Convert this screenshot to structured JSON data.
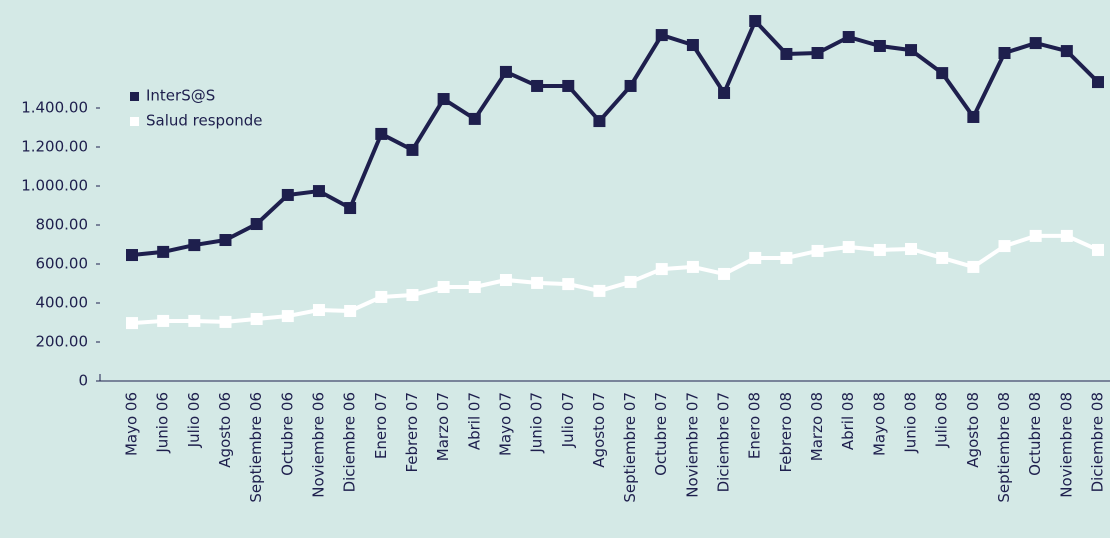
{
  "chart_data": {
    "type": "line",
    "categories": [
      "Mayo 06",
      "Junio 06",
      "Julio 06",
      "Agosto 06",
      "Septiembre 06",
      "Octubre 06",
      "Noviembre 06",
      "Diciembre 06",
      "Enero 07",
      "Febrero 07",
      "Marzo 07",
      "Abril 07",
      "Mayo 07",
      "Junio 07",
      "Julio 07",
      "Agosto 07",
      "Septiembre 07",
      "Octubre 07",
      "Noviembre 07",
      "Diciembre 07",
      "Enero 08",
      "Febrero 08",
      "Marzo 08",
      "Abril 08",
      "Mayo 08",
      "Junio 08",
      "Julio 08",
      "Agosto 08",
      "Septiembre 08",
      "Octubre 08",
      "Noviembre 08",
      "Diciembre 08"
    ],
    "series": [
      {
        "name": "InterS@S",
        "color": "#1e1f4d",
        "values": [
          646,
          662,
          697,
          723,
          805,
          954,
          974,
          887,
          1267,
          1185,
          1446,
          1344,
          1585,
          1513,
          1513,
          1333,
          1513,
          1774,
          1723,
          1477,
          1846,
          1677,
          1682,
          1764,
          1718,
          1697,
          1579,
          1354,
          1682,
          1733,
          1692,
          1533
        ]
      },
      {
        "name": "Salud responde",
        "color": "#ffffff",
        "values": [
          297,
          308,
          308,
          303,
          318,
          333,
          364,
          359,
          431,
          441,
          482,
          482,
          518,
          503,
          497,
          462,
          508,
          574,
          585,
          549,
          631,
          631,
          667,
          687,
          672,
          677,
          631,
          585,
          692,
          744,
          744,
          672
        ]
      }
    ],
    "ylim": [
      0,
      1900
    ],
    "yticks": [
      0,
      {
        "value": 200,
        "label": "200.00"
      },
      {
        "value": 400,
        "label": "400.00"
      },
      {
        "value": 600,
        "label": "600.00"
      },
      {
        "value": 800,
        "label": "800.00"
      },
      {
        "value": 1000,
        "label": "1.000.00"
      },
      {
        "value": 1200,
        "label": "1.200.00"
      },
      {
        "value": 1400,
        "label": "1.400.00"
      }
    ],
    "grid": false,
    "legend": "upper left"
  }
}
